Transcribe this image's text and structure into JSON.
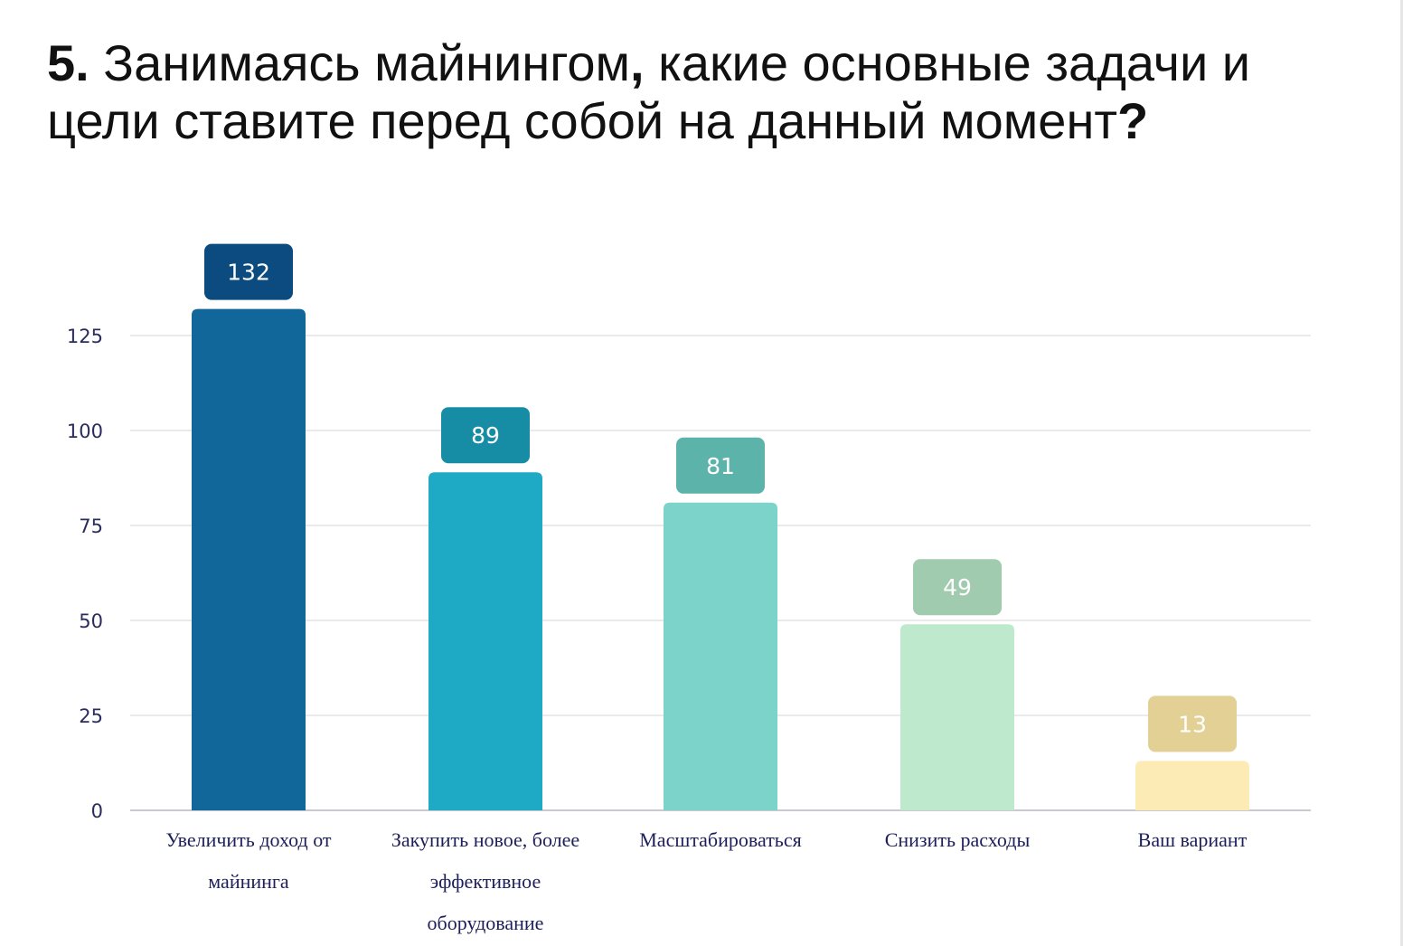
{
  "title": {
    "number": "5.",
    "line1": "Занимаясь майнингом",
    "comma": ",",
    "line1_rest": " какие основные задачи и",
    "line2": "цели ставите перед собой на данный момент",
    "question_mark": "?"
  },
  "chart_data": {
    "type": "bar",
    "title": "5. Занимаясь майнингом, какие основные задачи и цели ставите перед собой на данный момент?",
    "categories": [
      [
        "Увеличить доход от",
        "майнинга"
      ],
      [
        "Закупить новое, более",
        "эффективное",
        "оборудование"
      ],
      [
        "Масштабироваться"
      ],
      [
        "Снизить расходы"
      ],
      [
        "Ваш вариант"
      ]
    ],
    "values": [
      132,
      89,
      81,
      49,
      13
    ],
    "yticks": [
      0,
      25,
      50,
      75,
      100,
      125
    ],
    "ylim": [
      0,
      132
    ],
    "xlabel": "",
    "ylabel": "",
    "grid": true,
    "legend": "none",
    "colors": {
      "bars": [
        "#11679a",
        "#1ea9c5",
        "#7bd3c9",
        "#bfe9cc",
        "#fdebb5"
      ],
      "labels": [
        "#0b4b7f",
        "#178da5",
        "#5cb3aa",
        "#a1cbaf",
        "#e2d094"
      ],
      "grid": "#e3e3e3",
      "axis": "#c5cad3",
      "tick_text": "#2a2d5c",
      "category_text": "#1d1f5a"
    }
  }
}
